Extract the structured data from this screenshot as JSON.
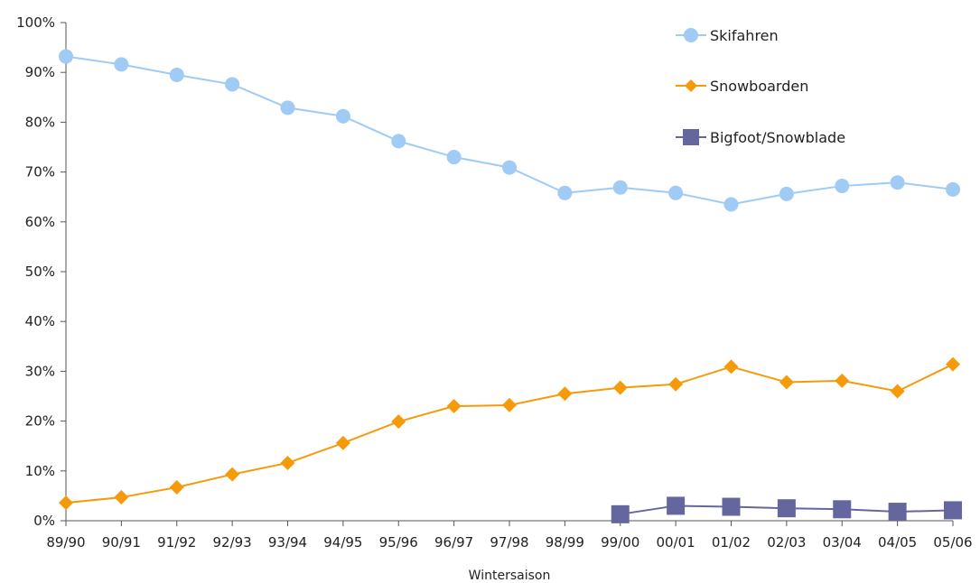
{
  "chart_data": {
    "type": "line",
    "title": "",
    "xlabel": "Wintersaison",
    "ylabel": "",
    "ylim": [
      0,
      100
    ],
    "yticks": [
      0,
      10,
      20,
      30,
      40,
      50,
      60,
      70,
      80,
      90,
      100
    ],
    "ytick_labels": [
      "0%",
      "10%",
      "20%",
      "30%",
      "40%",
      "50%",
      "60%",
      "70%",
      "80%",
      "90%",
      "100%"
    ],
    "grid": false,
    "legend_position": "top-right",
    "categories": [
      "89/90",
      "90/91",
      "91/92",
      "92/93",
      "93/94",
      "94/95",
      "95/96",
      "96/97",
      "97/98",
      "98/99",
      "99/00",
      "00/01",
      "01/02",
      "02/03",
      "03/04",
      "04/05",
      "05/06"
    ],
    "series": [
      {
        "name": "Skifahren",
        "color": "#9fcbf5",
        "marker": "circle",
        "values": [
          93.2,
          91.6,
          89.5,
          87.6,
          82.9,
          81.2,
          76.2,
          73.0,
          70.9,
          65.8,
          66.9,
          65.8,
          63.5,
          65.6,
          67.2,
          67.9,
          66.5
        ]
      },
      {
        "name": "Snowboarden",
        "color": "#f59b0b",
        "marker": "diamond",
        "values": [
          3.6,
          4.7,
          6.7,
          9.3,
          11.6,
          15.6,
          19.9,
          23.0,
          23.2,
          25.5,
          26.7,
          27.4,
          30.9,
          27.8,
          28.1,
          26.0,
          31.4
        ]
      },
      {
        "name": "Bigfoot/Snowblade",
        "color": "#66669e",
        "marker": "square",
        "values": [
          null,
          null,
          null,
          null,
          null,
          null,
          null,
          null,
          null,
          null,
          1.3,
          3.0,
          2.8,
          2.5,
          2.3,
          1.8,
          2.1
        ]
      }
    ]
  }
}
